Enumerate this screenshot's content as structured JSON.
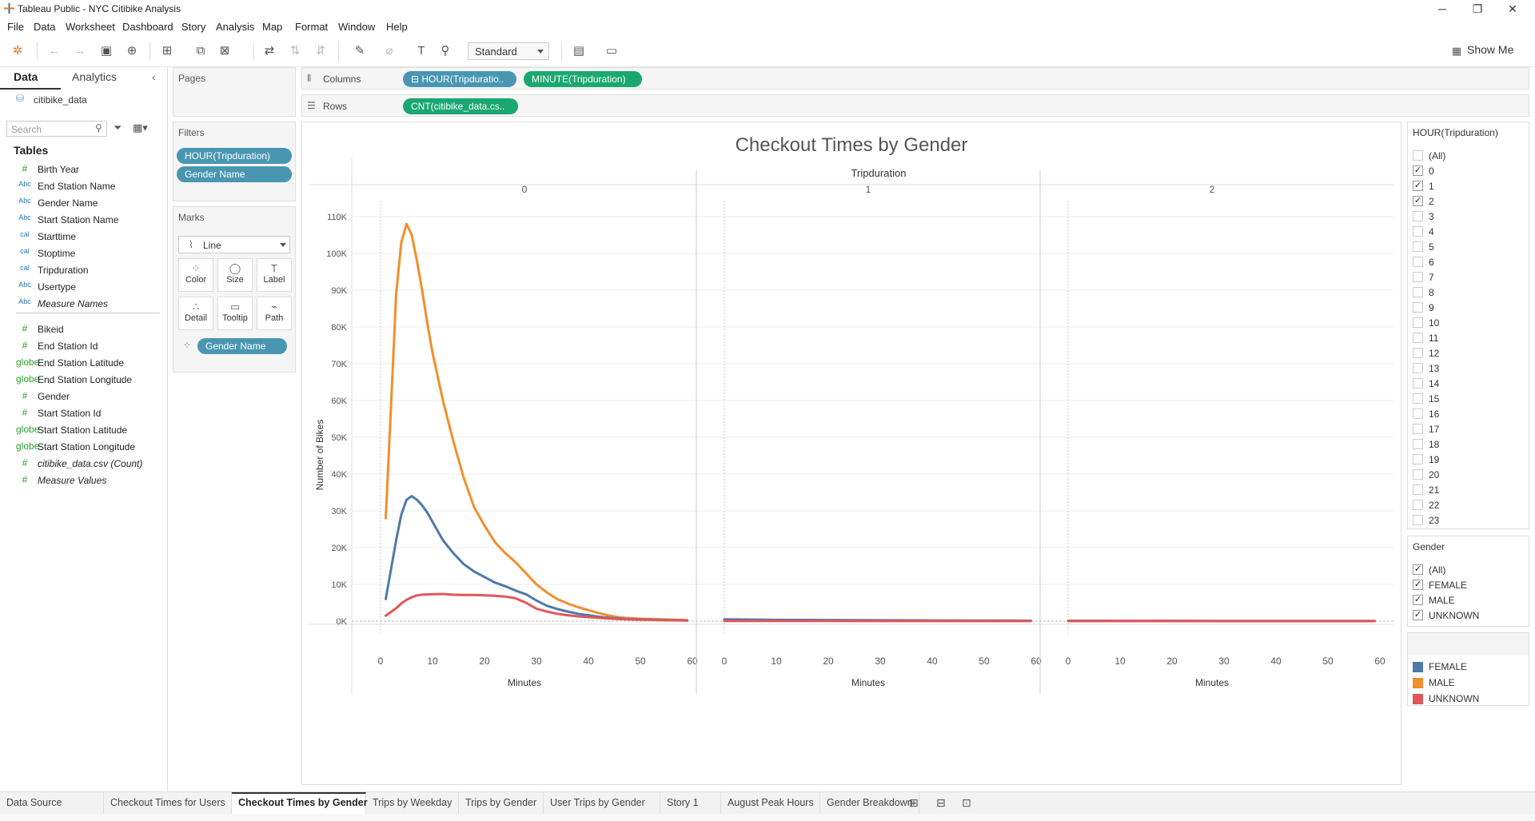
{
  "window": {
    "title": "Tableau Public - NYC Citibike Analysis",
    "minimize": "─",
    "maximize": "❐",
    "close": "✕"
  },
  "menu": [
    "File",
    "Data",
    "Worksheet",
    "Dashboard",
    "Story",
    "Analysis",
    "Map",
    "Format",
    "Window",
    "Help"
  ],
  "toolbar": {
    "fit_select": "Standard",
    "show_me": "Show Me"
  },
  "data_pane": {
    "tab_data": "Data",
    "tab_analytics": "Analytics",
    "datasource": "citibike_data",
    "search_placeholder": "Search",
    "tables_heading": "Tables",
    "dimensions": [
      {
        "icon": "#",
        "label": "Birth Year"
      },
      {
        "icon": "Abc",
        "label": "End Station Name"
      },
      {
        "icon": "Abc",
        "label": "Gender Name"
      },
      {
        "icon": "Abc",
        "label": "Start Station Name"
      },
      {
        "icon": "cal",
        "label": "Starttime"
      },
      {
        "icon": "cal",
        "label": "Stoptime"
      },
      {
        "icon": "cal",
        "label": "Tripduration"
      },
      {
        "icon": "Abc",
        "label": "Usertype"
      },
      {
        "icon": "Abc",
        "label": "Measure Names"
      }
    ],
    "measures": [
      {
        "icon": "#",
        "label": "Bikeid"
      },
      {
        "icon": "#",
        "label": "End Station Id"
      },
      {
        "icon": "globe",
        "label": "End Station Latitude"
      },
      {
        "icon": "globe",
        "label": "End Station Longitude"
      },
      {
        "icon": "#",
        "label": "Gender"
      },
      {
        "icon": "#",
        "label": "Start Station Id"
      },
      {
        "icon": "globe",
        "label": "Start Station Latitude"
      },
      {
        "icon": "globe",
        "label": "Start Station Longitude"
      },
      {
        "icon": "#",
        "label": "citibike_data.csv (Count)"
      },
      {
        "icon": "#",
        "label": "Measure Values"
      }
    ]
  },
  "shelves": {
    "pages_label": "Pages",
    "columns_label": "Columns",
    "rows_label": "Rows",
    "columns_pills": [
      "⊟ HOUR(Tripduratio..",
      "MINUTE(Tripduration)"
    ],
    "rows_pills": [
      "CNT(citibike_data.cs.."
    ],
    "filters_label": "Filters",
    "filters": [
      "HOUR(Tripduration)",
      "Gender Name"
    ],
    "marks_label": "Marks",
    "mark_type": "Line",
    "mark_buttons": [
      "Color",
      "Size",
      "Label",
      "Detail",
      "Tooltip",
      "Path"
    ],
    "mark_pill": "Gender Name"
  },
  "chart_data": {
    "type": "line",
    "title": "Checkout Times by Gender",
    "column_header": "Tripduration",
    "panes": [
      "0",
      "1",
      "2"
    ],
    "xlabel": "Minutes",
    "ylabel": "Number of Bikes",
    "xlim": [
      0,
      60
    ],
    "ylim": [
      0,
      110000
    ],
    "x_ticks": [
      "0",
      "10",
      "20",
      "30",
      "40",
      "50",
      "60"
    ],
    "y_ticks": [
      "0K",
      "10K",
      "20K",
      "30K",
      "40K",
      "50K",
      "60K",
      "70K",
      "80K",
      "90K",
      "100K",
      "110K"
    ],
    "grid": true,
    "legend_position": "right",
    "series": [
      {
        "name": "MALE",
        "color": "#f28e2b",
        "panes": [
          [
            [
              1,
              28000
            ],
            [
              2,
              58000
            ],
            [
              3,
              89000
            ],
            [
              4,
              103000
            ],
            [
              5,
              108000
            ],
            [
              6,
              105000
            ],
            [
              7,
              98000
            ],
            [
              8,
              90000
            ],
            [
              9,
              81000
            ],
            [
              10,
              73000
            ],
            [
              12,
              60000
            ],
            [
              14,
              49000
            ],
            [
              16,
              39000
            ],
            [
              18,
              31000
            ],
            [
              20,
              26000
            ],
            [
              22,
              21500
            ],
            [
              24,
              18500
            ],
            [
              26,
              16000
            ],
            [
              28,
              13000
            ],
            [
              30,
              10000
            ],
            [
              32,
              7800
            ],
            [
              34,
              6000
            ],
            [
              36,
              4800
            ],
            [
              38,
              3800
            ],
            [
              40,
              3000
            ],
            [
              42,
              2200
            ],
            [
              44,
              1500
            ],
            [
              46,
              1000
            ],
            [
              48,
              800
            ],
            [
              50,
              650
            ],
            [
              55,
              450
            ],
            [
              59,
              300
            ]
          ],
          [
            [
              0,
              200
            ],
            [
              10,
              150
            ],
            [
              20,
              100
            ],
            [
              30,
              80
            ],
            [
              40,
              60
            ],
            [
              50,
              50
            ],
            [
              59,
              40
            ]
          ],
          [
            [
              0,
              40
            ],
            [
              10,
              35
            ],
            [
              20,
              30
            ],
            [
              30,
              30
            ],
            [
              40,
              25
            ],
            [
              50,
              25
            ],
            [
              59,
              20
            ]
          ]
        ]
      },
      {
        "name": "FEMALE",
        "color": "#4e79a7",
        "panes": [
          [
            [
              1,
              6000
            ],
            [
              2,
              14000
            ],
            [
              3,
              22000
            ],
            [
              4,
              29000
            ],
            [
              5,
              33000
            ],
            [
              6,
              34000
            ],
            [
              7,
              33000
            ],
            [
              8,
              31500
            ],
            [
              9,
              29500
            ],
            [
              10,
              27000
            ],
            [
              12,
              22000
            ],
            [
              14,
              18500
            ],
            [
              16,
              15500
            ],
            [
              18,
              13500
            ],
            [
              20,
              12000
            ],
            [
              22,
              10500
            ],
            [
              24,
              9500
            ],
            [
              26,
              8300
            ],
            [
              28,
              7300
            ],
            [
              30,
              5600
            ],
            [
              32,
              4200
            ],
            [
              34,
              3300
            ],
            [
              36,
              2600
            ],
            [
              38,
              2000
            ],
            [
              40,
              1600
            ],
            [
              42,
              1200
            ],
            [
              44,
              900
            ],
            [
              46,
              700
            ],
            [
              48,
              550
            ],
            [
              50,
              450
            ],
            [
              55,
              300
            ],
            [
              59,
              200
            ]
          ],
          [
            [
              0,
              500
            ],
            [
              10,
              350
            ],
            [
              20,
              300
            ],
            [
              30,
              250
            ],
            [
              40,
              200
            ],
            [
              50,
              150
            ],
            [
              59,
              100
            ]
          ],
          [
            [
              0,
              100
            ],
            [
              10,
              90
            ],
            [
              20,
              80
            ],
            [
              30,
              70
            ],
            [
              40,
              60
            ],
            [
              50,
              50
            ],
            [
              59,
              50
            ]
          ]
        ]
      },
      {
        "name": "UNKNOWN",
        "color": "#e15759",
        "panes": [
          [
            [
              1,
              1500
            ],
            [
              2,
              2500
            ],
            [
              3,
              3500
            ],
            [
              4,
              4800
            ],
            [
              5,
              5800
            ],
            [
              6,
              6500
            ],
            [
              7,
              7000
            ],
            [
              8,
              7200
            ],
            [
              10,
              7300
            ],
            [
              12,
              7400
            ],
            [
              14,
              7200
            ],
            [
              16,
              7100
            ],
            [
              18,
              7100
            ],
            [
              20,
              7000
            ],
            [
              22,
              6900
            ],
            [
              24,
              6700
            ],
            [
              26,
              6200
            ],
            [
              28,
              5000
            ],
            [
              30,
              3400
            ],
            [
              32,
              2600
            ],
            [
              34,
              2000
            ],
            [
              36,
              1600
            ],
            [
              38,
              1300
            ],
            [
              40,
              1100
            ],
            [
              42,
              900
            ],
            [
              44,
              700
            ],
            [
              46,
              550
            ],
            [
              48,
              450
            ],
            [
              50,
              380
            ],
            [
              55,
              250
            ],
            [
              59,
              150
            ]
          ],
          [
            [
              0,
              60
            ],
            [
              10,
              50
            ],
            [
              20,
              40
            ],
            [
              30,
              30
            ],
            [
              40,
              30
            ],
            [
              50,
              25
            ],
            [
              59,
              20
            ]
          ],
          [
            [
              0,
              20
            ],
            [
              10,
              15
            ],
            [
              20,
              15
            ],
            [
              30,
              10
            ],
            [
              40,
              10
            ],
            [
              50,
              10
            ],
            [
              59,
              10
            ]
          ]
        ]
      }
    ]
  },
  "hour_filter": {
    "title": "HOUR(Tripduration)",
    "items": [
      {
        "label": "(All)",
        "checked": false
      },
      {
        "label": "0",
        "checked": true
      },
      {
        "label": "1",
        "checked": true
      },
      {
        "label": "2",
        "checked": true
      },
      {
        "label": "3",
        "checked": false
      },
      {
        "label": "4",
        "checked": false
      },
      {
        "label": "5",
        "checked": false
      },
      {
        "label": "6",
        "checked": false
      },
      {
        "label": "7",
        "checked": false
      },
      {
        "label": "8",
        "checked": false
      },
      {
        "label": "9",
        "checked": false
      },
      {
        "label": "10",
        "checked": false
      },
      {
        "label": "11",
        "checked": false
      },
      {
        "label": "12",
        "checked": false
      },
      {
        "label": "13",
        "checked": false
      },
      {
        "label": "14",
        "checked": false
      },
      {
        "label": "15",
        "checked": false
      },
      {
        "label": "16",
        "checked": false
      },
      {
        "label": "17",
        "checked": false
      },
      {
        "label": "18",
        "checked": false
      },
      {
        "label": "19",
        "checked": false
      },
      {
        "label": "20",
        "checked": false
      },
      {
        "label": "21",
        "checked": false
      },
      {
        "label": "22",
        "checked": false
      },
      {
        "label": "23",
        "checked": false
      }
    ]
  },
  "gender_filter": {
    "title": "Gender",
    "items": [
      {
        "label": "(All)",
        "checked": true
      },
      {
        "label": "FEMALE",
        "checked": true
      },
      {
        "label": "MALE",
        "checked": true
      },
      {
        "label": "UNKNOWN",
        "checked": true
      }
    ]
  },
  "legend": [
    {
      "label": "FEMALE",
      "color": "#4e79a7"
    },
    {
      "label": "MALE",
      "color": "#f28e2b"
    },
    {
      "label": "UNKNOWN",
      "color": "#e15759"
    }
  ],
  "tabs": [
    {
      "label": "Data Source",
      "active": false
    },
    {
      "label": "Checkout Times for Users",
      "active": false
    },
    {
      "label": "Checkout Times by Gender",
      "active": true
    },
    {
      "label": "Trips by Weekday",
      "active": false
    },
    {
      "label": "Trips by Gender",
      "active": false
    },
    {
      "label": "User Trips by Gender",
      "active": false
    },
    {
      "label": "Story 1",
      "active": false
    },
    {
      "label": "August Peak Hours",
      "active": false
    },
    {
      "label": "Gender Breakdown",
      "active": false
    }
  ]
}
